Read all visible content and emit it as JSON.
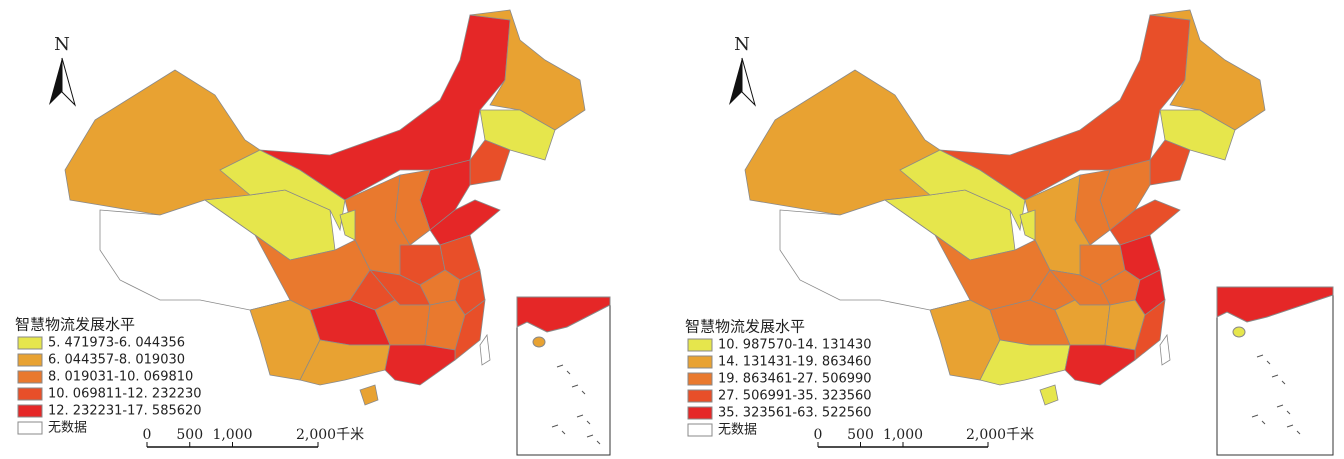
{
  "maps": [
    {
      "north": "N",
      "legend": {
        "title": "智慧物流发展水平",
        "items": [
          {
            "label": "5. 471973-6. 044356",
            "color": "#e6e64c"
          },
          {
            "label": "6. 044357-8. 019030",
            "color": "#e8a232"
          },
          {
            "label": "8. 019031-10. 069810",
            "color": "#e9792e"
          },
          {
            "label": "10. 069811-12. 232230",
            "color": "#e84f29"
          },
          {
            "label": "12. 232231-17. 585620",
            "color": "#e52727"
          }
        ],
        "no_data": {
          "label": "无数据",
          "color": "#ffffff"
        }
      },
      "scale": [
        "0",
        "500",
        "1,000",
        "2,000千米"
      ]
    },
    {
      "north": "N",
      "legend": {
        "title": "智慧物流发展水平",
        "items": [
          {
            "label": "10. 987570-14. 131430",
            "color": "#e6e64c"
          },
          {
            "label": "14. 131431-19. 863460",
            "color": "#e8a232"
          },
          {
            "label": "19. 863461-27. 506990",
            "color": "#e9792e"
          },
          {
            "label": "27. 506991-35. 323560",
            "color": "#e84f29"
          },
          {
            "label": "35. 323561-63. 522560",
            "color": "#e52727"
          }
        ],
        "no_data": {
          "label": "无数据",
          "color": "#ffffff"
        }
      },
      "scale": [
        "0",
        "500",
        "1,000",
        "2,000千米"
      ]
    }
  ]
}
